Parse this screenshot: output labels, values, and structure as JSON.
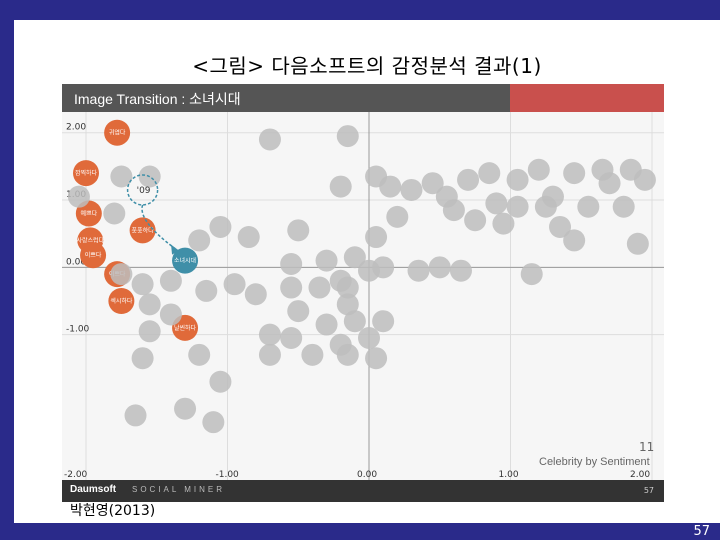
{
  "slide": {
    "title": "<그림> 다음소프트의 감정분석 결과(1)",
    "caption": "박현영(2013)",
    "page_number": "57"
  },
  "chart": {
    "header_title": "Image Transition : 소녀시대",
    "brand": "Daumsoft",
    "brand_sub": "SOCIAL MINER",
    "footer_page": "57",
    "legend_number": "11",
    "legend_text": "Celebrity by Sentiment",
    "year_label": "'09",
    "y_ticks": [
      "2.00",
      "1.00",
      "0.00",
      "-1.00"
    ],
    "x_ticks": [
      "-2.00",
      "-1.00",
      "0.00",
      "1.00",
      "2.00"
    ],
    "colors": {
      "highlight": "#e06a3a",
      "focus": "#3f8fa8",
      "neutral": "#bdbdbd",
      "header": "#555555",
      "accent_bar": "#c9504d"
    }
  },
  "chart_data": {
    "type": "scatter",
    "title": "Image Transition : 소녀시대",
    "xlabel": "",
    "ylabel": "",
    "xlim": [
      -2.0,
      2.0
    ],
    "ylim": [
      -3.1,
      2.1
    ],
    "grid": true,
    "points": [
      {
        "x": -1.78,
        "y": 2.0,
        "label": "귀엽다",
        "group": "highlight"
      },
      {
        "x": -2.0,
        "y": 1.4,
        "label": "깜찍하다",
        "group": "highlight"
      },
      {
        "x": -1.98,
        "y": 0.8,
        "label": "예쁘다",
        "group": "highlight"
      },
      {
        "x": -1.97,
        "y": 0.4,
        "label": "사랑스럽다",
        "group": "highlight"
      },
      {
        "x": -1.95,
        "y": 0.18,
        "label": "이쁘다",
        "group": "highlight"
      },
      {
        "x": -1.78,
        "y": -0.1,
        "label": "이쁘다",
        "group": "highlight"
      },
      {
        "x": -1.6,
        "y": 0.55,
        "label": "풋풋하다",
        "group": "highlight"
      },
      {
        "x": -1.75,
        "y": -0.5,
        "label": "섹시하다",
        "group": "highlight"
      },
      {
        "x": -1.3,
        "y": -0.9,
        "label": "날씬하다",
        "group": "highlight"
      },
      {
        "x": -1.3,
        "y": 0.1,
        "label": "소녀시대",
        "group": "focus"
      },
      {
        "x": -1.75,
        "y": 1.35,
        "label": "",
        "group": "neutral"
      },
      {
        "x": -1.55,
        "y": 1.35,
        "label": "",
        "group": "neutral"
      },
      {
        "x": -2.05,
        "y": 1.05,
        "label": "",
        "group": "neutral"
      },
      {
        "x": -1.8,
        "y": 0.8,
        "label": "",
        "group": "neutral"
      },
      {
        "x": -1.2,
        "y": 0.4,
        "label": "",
        "group": "neutral"
      },
      {
        "x": -0.85,
        "y": 0.45,
        "label": "",
        "group": "neutral"
      },
      {
        "x": -0.7,
        "y": 1.9,
        "label": "",
        "group": "neutral"
      },
      {
        "x": -0.15,
        "y": 1.95,
        "label": "",
        "group": "neutral"
      },
      {
        "x": -0.2,
        "y": 1.2,
        "label": "",
        "group": "neutral"
      },
      {
        "x": 0.05,
        "y": 1.35,
        "label": "",
        "group": "neutral"
      },
      {
        "x": 0.15,
        "y": 1.2,
        "label": "",
        "group": "neutral"
      },
      {
        "x": 0.3,
        "y": 1.15,
        "label": "",
        "group": "neutral"
      },
      {
        "x": 0.55,
        "y": 1.05,
        "label": "",
        "group": "neutral"
      },
      {
        "x": 0.7,
        "y": 1.3,
        "label": "",
        "group": "neutral"
      },
      {
        "x": 0.85,
        "y": 1.4,
        "label": "",
        "group": "neutral"
      },
      {
        "x": 1.05,
        "y": 1.3,
        "label": "",
        "group": "neutral"
      },
      {
        "x": 1.2,
        "y": 1.45,
        "label": "",
        "group": "neutral"
      },
      {
        "x": 1.45,
        "y": 1.4,
        "label": "",
        "group": "neutral"
      },
      {
        "x": 1.65,
        "y": 1.45,
        "label": "",
        "group": "neutral"
      },
      {
        "x": 1.85,
        "y": 1.45,
        "label": "",
        "group": "neutral"
      },
      {
        "x": 1.95,
        "y": 1.3,
        "label": "",
        "group": "neutral"
      },
      {
        "x": 1.7,
        "y": 1.25,
        "label": "",
        "group": "neutral"
      },
      {
        "x": 1.3,
        "y": 1.05,
        "label": "",
        "group": "neutral"
      },
      {
        "x": 1.55,
        "y": 0.9,
        "label": "",
        "group": "neutral"
      },
      {
        "x": 1.8,
        "y": 0.9,
        "label": "",
        "group": "neutral"
      },
      {
        "x": 0.45,
        "y": 1.25,
        "label": "",
        "group": "neutral"
      },
      {
        "x": 0.9,
        "y": 0.95,
        "label": "",
        "group": "neutral"
      },
      {
        "x": 1.05,
        "y": 0.9,
        "label": "",
        "group": "neutral"
      },
      {
        "x": 1.25,
        "y": 0.9,
        "label": "",
        "group": "neutral"
      },
      {
        "x": 0.2,
        "y": 0.75,
        "label": "",
        "group": "neutral"
      },
      {
        "x": 0.6,
        "y": 0.85,
        "label": "",
        "group": "neutral"
      },
      {
        "x": 0.95,
        "y": 0.65,
        "label": "",
        "group": "neutral"
      },
      {
        "x": 0.75,
        "y": 0.7,
        "label": "",
        "group": "neutral"
      },
      {
        "x": 0.05,
        "y": 0.45,
        "label": "",
        "group": "neutral"
      },
      {
        "x": 1.35,
        "y": 0.6,
        "label": "",
        "group": "neutral"
      },
      {
        "x": 1.45,
        "y": 0.4,
        "label": "",
        "group": "neutral"
      },
      {
        "x": 1.9,
        "y": 0.35,
        "label": "",
        "group": "neutral"
      },
      {
        "x": -1.05,
        "y": 0.6,
        "label": "",
        "group": "neutral"
      },
      {
        "x": -0.5,
        "y": 0.55,
        "label": "",
        "group": "neutral"
      },
      {
        "x": -0.3,
        "y": 0.1,
        "label": "",
        "group": "neutral"
      },
      {
        "x": -0.1,
        "y": 0.15,
        "label": "",
        "group": "neutral"
      },
      {
        "x": -0.55,
        "y": 0.05,
        "label": "",
        "group": "neutral"
      },
      {
        "x": -0.2,
        "y": -0.2,
        "label": "",
        "group": "neutral"
      },
      {
        "x": 0.0,
        "y": -0.05,
        "label": "",
        "group": "neutral"
      },
      {
        "x": -0.55,
        "y": -0.3,
        "label": "",
        "group": "neutral"
      },
      {
        "x": -0.35,
        "y": -0.3,
        "label": "",
        "group": "neutral"
      },
      {
        "x": -0.15,
        "y": -0.3,
        "label": "",
        "group": "neutral"
      },
      {
        "x": -0.15,
        "y": -0.55,
        "label": "",
        "group": "neutral"
      },
      {
        "x": -0.5,
        "y": -0.65,
        "label": "",
        "group": "neutral"
      },
      {
        "x": -0.1,
        "y": -0.8,
        "label": "",
        "group": "neutral"
      },
      {
        "x": 0.1,
        "y": -0.8,
        "label": "",
        "group": "neutral"
      },
      {
        "x": -0.3,
        "y": -0.85,
        "label": "",
        "group": "neutral"
      },
      {
        "x": -0.55,
        "y": -1.05,
        "label": "",
        "group": "neutral"
      },
      {
        "x": -0.2,
        "y": -1.15,
        "label": "",
        "group": "neutral"
      },
      {
        "x": -0.4,
        "y": -1.3,
        "label": "",
        "group": "neutral"
      },
      {
        "x": -0.15,
        "y": -1.3,
        "label": "",
        "group": "neutral"
      },
      {
        "x": 0.05,
        "y": -1.35,
        "label": "",
        "group": "neutral"
      },
      {
        "x": 0.0,
        "y": -1.05,
        "label": "",
        "group": "neutral"
      },
      {
        "x": 0.1,
        "y": 0.0,
        "label": "",
        "group": "neutral"
      },
      {
        "x": 0.35,
        "y": -0.05,
        "label": "",
        "group": "neutral"
      },
      {
        "x": 0.5,
        "y": 0.0,
        "label": "",
        "group": "neutral"
      },
      {
        "x": 0.65,
        "y": -0.05,
        "label": "",
        "group": "neutral"
      },
      {
        "x": 1.15,
        "y": -0.1,
        "label": "",
        "group": "neutral"
      },
      {
        "x": -1.75,
        "y": -0.1,
        "label": "",
        "group": "neutral"
      },
      {
        "x": -1.6,
        "y": -0.25,
        "label": "",
        "group": "neutral"
      },
      {
        "x": -1.4,
        "y": -0.2,
        "label": "",
        "group": "neutral"
      },
      {
        "x": -1.15,
        "y": -0.35,
        "label": "",
        "group": "neutral"
      },
      {
        "x": -0.95,
        "y": -0.25,
        "label": "",
        "group": "neutral"
      },
      {
        "x": -0.8,
        "y": -0.4,
        "label": "",
        "group": "neutral"
      },
      {
        "x": -1.55,
        "y": -0.55,
        "label": "",
        "group": "neutral"
      },
      {
        "x": -1.4,
        "y": -0.7,
        "label": "",
        "group": "neutral"
      },
      {
        "x": -1.55,
        "y": -0.95,
        "label": "",
        "group": "neutral"
      },
      {
        "x": -1.6,
        "y": -1.35,
        "label": "",
        "group": "neutral"
      },
      {
        "x": -1.2,
        "y": -1.3,
        "label": "",
        "group": "neutral"
      },
      {
        "x": -1.05,
        "y": -1.7,
        "label": "",
        "group": "neutral"
      },
      {
        "x": -1.65,
        "y": -2.2,
        "label": "",
        "group": "neutral"
      },
      {
        "x": -1.3,
        "y": -2.1,
        "label": "",
        "group": "neutral"
      },
      {
        "x": -1.1,
        "y": -2.3,
        "label": "",
        "group": "neutral"
      },
      {
        "x": -0.7,
        "y": -1.3,
        "label": "",
        "group": "neutral"
      },
      {
        "x": -0.7,
        "y": -1.0,
        "label": "",
        "group": "neutral"
      }
    ]
  }
}
